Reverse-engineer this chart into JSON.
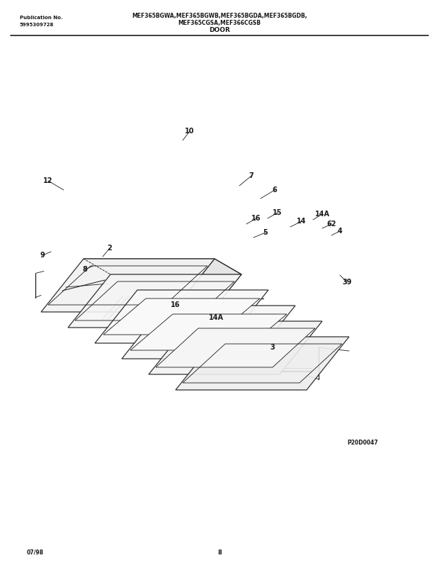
{
  "title_line1": "MEF365BGWA,MEF365BGWB,MEF365BGDA,MEF365BGDB,",
  "title_line2": "MEF365CGSA,MEF366CGSB",
  "title_line3": "DOOR",
  "pub_label": "Publication No.",
  "pub_number": "5995309728",
  "diagram_code": "P20D0047",
  "date_code": "07/98",
  "page_number": "8",
  "bg_color": "#ffffff",
  "line_color": "#1a1a1a"
}
